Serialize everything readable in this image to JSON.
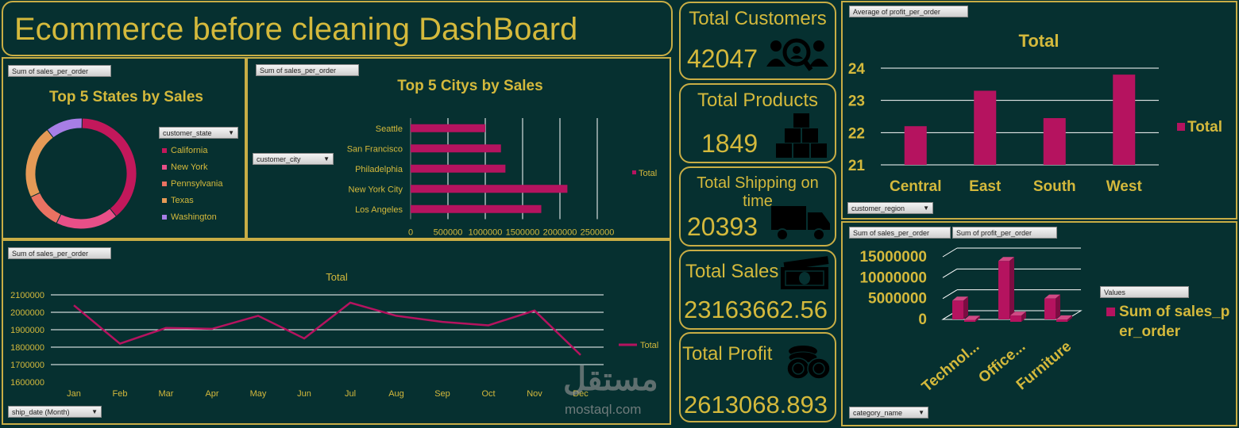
{
  "header": {
    "title": "Ecommerce before cleaning DashBoard"
  },
  "colors": {
    "background": "#063030",
    "gold": "#d4b93c",
    "border": "#c8ad45",
    "magenta": "#b5135f"
  },
  "kpis": {
    "customers": {
      "label": "Total Customers",
      "value": "42047",
      "icon": "customer-search-icon"
    },
    "products": {
      "label": "Total Products",
      "value": "1849",
      "icon": "boxes-icon"
    },
    "shipping": {
      "label": "Total Shipping on time",
      "value": "20393",
      "icon": "truck-icon"
    },
    "sales": {
      "label": "Total Sales",
      "value": "23163662.56",
      "icon": "money-icon"
    },
    "profit": {
      "label": "Total Profit",
      "value": "2613068.893",
      "icon": "coins-icon"
    }
  },
  "states_chart": {
    "field_tag": "Sum of sales_per_order",
    "filter_label": "customer_state"
  },
  "cities_chart": {
    "field_tag": "Sum of sales_per_order",
    "filter_label": "customer_city"
  },
  "months_chart": {
    "field_tag": "Sum of sales_per_order",
    "filter_label": "ship_date (Month)"
  },
  "region_chart": {
    "field_tag": "Average of profit_per_order",
    "filter_label": "customer_region"
  },
  "category_chart": {
    "field_tag_1": "Sum of sales_per_order",
    "field_tag_2": "Sum of profit_per_order",
    "filter_label": "category_name",
    "values_tag": "Values"
  },
  "watermark": {
    "arabic": "مستقل",
    "latin": "mostaql.com"
  },
  "chart_data": [
    {
      "id": "states",
      "type": "pie",
      "title": "Top 5 States by Sales",
      "categories": [
        "California",
        "New York",
        "Pennsylvania",
        "Texas",
        "Washington"
      ],
      "values": [
        36,
        17,
        10,
        20,
        10
      ],
      "colors": [
        "#c2185b",
        "#e84f88",
        "#ea7262",
        "#e59a56",
        "#a77ee6"
      ],
      "legend": "right"
    },
    {
      "id": "cities",
      "type": "bar",
      "orientation": "horizontal",
      "title": "Top 5 Citys by Sales",
      "categories": [
        "Seattle",
        "San Francisco",
        "Philadelphia",
        "New York City",
        "Los Angeles"
      ],
      "series": [
        {
          "name": "Total",
          "values": [
            1000000,
            1210000,
            1270000,
            2100000,
            1750000
          ]
        }
      ],
      "xticks": [
        "0",
        "500000",
        "1000000",
        "1500000",
        "2000000",
        "2500000"
      ],
      "xlim": [
        0,
        2500000
      ],
      "legend": "right"
    },
    {
      "id": "months",
      "type": "line",
      "title": "Total",
      "categories": [
        "Jan",
        "Feb",
        "Mar",
        "Apr",
        "May",
        "Jun",
        "Jul",
        "Aug",
        "Sep",
        "Oct",
        "Nov",
        "Dec"
      ],
      "series": [
        {
          "name": "Total",
          "values": [
            2040000,
            1820000,
            1910000,
            1905000,
            1980000,
            1850000,
            2055000,
            1980000,
            1945000,
            1925000,
            2010000,
            1755000
          ]
        }
      ],
      "yticks": [
        "2100000",
        "2000000",
        "1900000",
        "1800000",
        "1700000",
        "1600000"
      ],
      "ylim": [
        1600000,
        2100000
      ],
      "grid": true,
      "legend": "right"
    },
    {
      "id": "regions",
      "type": "bar",
      "title": "Total",
      "categories": [
        "Central",
        "East",
        "South",
        "West"
      ],
      "series": [
        {
          "name": "Total",
          "values": [
            22.2,
            23.3,
            22.45,
            23.8
          ]
        }
      ],
      "yticks": [
        "24",
        "23",
        "22",
        "21"
      ],
      "ylim": [
        21,
        24
      ],
      "grid": true,
      "legend": "right"
    },
    {
      "id": "categories",
      "type": "bar",
      "title": "",
      "categories": [
        "Technol...",
        "Office...",
        "Furniture"
      ],
      "series": [
        {
          "name": "Sum of sales_per_order",
          "values": [
            4500000,
            14000000,
            5000000
          ]
        },
        {
          "name": "",
          "values": [
            500000,
            1500000,
            600000
          ]
        }
      ],
      "yticks": [
        "15000000",
        "10000000",
        "5000000",
        "0"
      ],
      "ylim": [
        0,
        15000000
      ],
      "grid": true,
      "legend": "right"
    }
  ]
}
